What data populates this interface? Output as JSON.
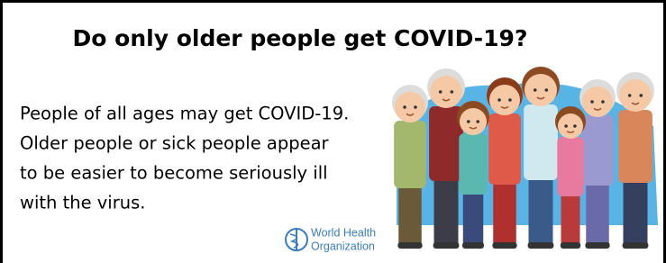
{
  "title": "Do only older people get COVID-19?",
  "body": {
    "lines": [
      "People of all ages may get COVID-19.",
      "Older people or sick people appear",
      "to be easier to become seriously ill",
      "with the virus."
    ]
  },
  "logo": {
    "lines": [
      "World Health",
      "Organization"
    ]
  }
}
